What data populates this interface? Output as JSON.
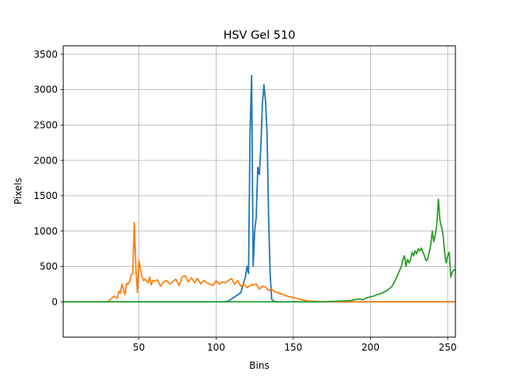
{
  "chart_data": {
    "type": "line",
    "title": "HSV Gel 510",
    "xlabel": "Bins",
    "ylabel": "Pixels",
    "xlim": [
      1,
      255
    ],
    "ylim": [
      -500,
      3620
    ],
    "xticks": [
      50,
      100,
      150,
      200,
      250
    ],
    "yticks": [
      0,
      500,
      1000,
      1500,
      2000,
      2500,
      3000,
      3500
    ],
    "grid": true,
    "legend": "none",
    "series": [
      {
        "color": "#1f77b4",
        "x": [
          1,
          105,
          108,
          110,
          112,
          114,
          116,
          117,
          118,
          119,
          120,
          121,
          122,
          123,
          124,
          125,
          126,
          127,
          128,
          129,
          130,
          131,
          132,
          133,
          134,
          135,
          136,
          137,
          138,
          140,
          150,
          200,
          255
        ],
        "y": [
          0,
          0,
          10,
          40,
          70,
          100,
          130,
          200,
          280,
          350,
          500,
          400,
          2400,
          3200,
          500,
          1000,
          1200,
          1900,
          1800,
          2200,
          2800,
          3070,
          2850,
          2400,
          1200,
          400,
          40,
          10,
          5,
          0,
          0,
          0,
          0
        ]
      },
      {
        "color": "#ff7f0e",
        "x": [
          1,
          30,
          32,
          34,
          36,
          37,
          38,
          39,
          40,
          41,
          42,
          43,
          44,
          45,
          46,
          47,
          48,
          49,
          50,
          51,
          52,
          53,
          54,
          55,
          56,
          57,
          58,
          59,
          60,
          62,
          64,
          66,
          68,
          70,
          72,
          74,
          76,
          78,
          80,
          82,
          84,
          86,
          88,
          90,
          92,
          94,
          96,
          98,
          100,
          102,
          104,
          106,
          108,
          110,
          112,
          114,
          116,
          118,
          120,
          122,
          124,
          126,
          128,
          130,
          132,
          134,
          136,
          138,
          140,
          142,
          144,
          146,
          148,
          150,
          155,
          160,
          165,
          170,
          180,
          200,
          255
        ],
        "y": [
          0,
          0,
          40,
          80,
          50,
          150,
          120,
          250,
          180,
          100,
          260,
          250,
          290,
          380,
          400,
          1120,
          500,
          130,
          580,
          460,
          350,
          300,
          320,
          290,
          270,
          350,
          240,
          300,
          290,
          310,
          220,
          280,
          300,
          250,
          290,
          320,
          230,
          350,
          370,
          280,
          340,
          270,
          330,
          250,
          300,
          270,
          250,
          230,
          300,
          250,
          280,
          270,
          300,
          330,
          250,
          300,
          220,
          250,
          200,
          230,
          240,
          250,
          180,
          220,
          210,
          160,
          180,
          140,
          130,
          110,
          100,
          80,
          70,
          60,
          30,
          10,
          5,
          0,
          0,
          0,
          0
        ]
      },
      {
        "color": "#2ca02c",
        "x": [
          1,
          150,
          170,
          175,
          180,
          185,
          188,
          190,
          192,
          195,
          198,
          200,
          202,
          204,
          206,
          208,
          210,
          212,
          214,
          216,
          218,
          220,
          221,
          222,
          223,
          224,
          225,
          226,
          227,
          228,
          229,
          230,
          231,
          232,
          233,
          234,
          235,
          236,
          237,
          238,
          239,
          240,
          241,
          242,
          243,
          244,
          245,
          246,
          247,
          248,
          249,
          250,
          251,
          252,
          253,
          254,
          255
        ],
        "y": [
          0,
          0,
          0,
          5,
          10,
          15,
          20,
          30,
          40,
          30,
          60,
          70,
          80,
          100,
          110,
          130,
          150,
          180,
          220,
          300,
          400,
          500,
          600,
          650,
          500,
          600,
          550,
          600,
          700,
          650,
          720,
          680,
          750,
          720,
          760,
          700,
          650,
          580,
          600,
          700,
          800,
          1000,
          850,
          950,
          1100,
          1450,
          1150,
          1050,
          950,
          700,
          550,
          650,
          700,
          350,
          420,
          450,
          450
        ]
      }
    ]
  }
}
